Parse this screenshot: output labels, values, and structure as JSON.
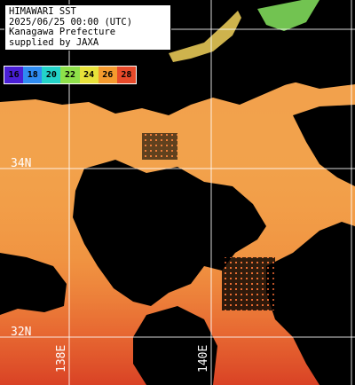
{
  "info": {
    "line1": "HIMAWARI SST",
    "line2": "2025/06/25 00:00 (UTC)",
    "line3": "Kanagawa Prefecture",
    "line4": "supplied by JAXA"
  },
  "legend": [
    {
      "label": "16",
      "color": "#4a1fd6"
    },
    {
      "label": "18",
      "color": "#2f8cf2"
    },
    {
      "label": "20",
      "color": "#23d3c9"
    },
    {
      "label": "22",
      "color": "#8ee04a"
    },
    {
      "label": "24",
      "color": "#e8e23a"
    },
    {
      "label": "26",
      "color": "#f59a2e"
    },
    {
      "label": "28",
      "color": "#e84a2a"
    }
  ],
  "grid": {
    "latitudes": [
      {
        "label": "34N"
      },
      {
        "label": "32N"
      }
    ],
    "longitudes": [
      {
        "label": "138E"
      },
      {
        "label": "140E"
      }
    ]
  },
  "colors": {
    "sea_warm": "#f5a04a",
    "sea_hot": "#e8652f",
    "sea_hottest": "#d94225",
    "land_cloud": "#000000",
    "coast_cool": "#f2d25a",
    "coast_green": "#7ed85a",
    "gridline": "#ffffff"
  }
}
